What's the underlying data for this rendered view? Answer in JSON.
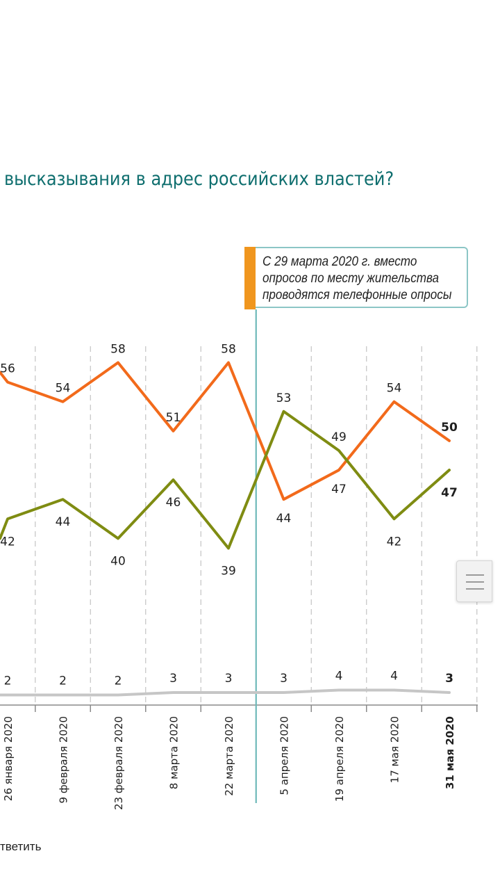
{
  "title": "высказывания в адрес российских властей?",
  "annotation": {
    "lines": [
      "С 29 марта 2020 г. вместо",
      "опросов по месту жительства",
      "проводятся телефонные опросы"
    ],
    "accent_color": "#f0961e",
    "border_color": "#8cc6c6"
  },
  "footnote": "тветить",
  "menu_icon": "hamburger-menu-icon",
  "chart_data": {
    "type": "line",
    "categories": [
      "26 января 2020",
      "9 февраля 2020",
      "23 февраля 2020",
      "8 марта 2020",
      "22 марта 2020",
      "5 апреля 2020",
      "19 апреля 2020",
      "17 мая 2020",
      "31 мая 2020"
    ],
    "highlighted_category": "31 мая 2020",
    "series": [
      {
        "color": "#f26a1b",
        "values": [
          56,
          54,
          58,
          51,
          58,
          44,
          47,
          54,
          50
        ],
        "label_position": "above-before-april, below-after-april"
      },
      {
        "color": "#7f8c12",
        "values": [
          42,
          44,
          40,
          46,
          39,
          53,
          49,
          42,
          47
        ]
      },
      {
        "color": "#c6c6c6",
        "values": [
          2,
          2,
          2,
          3,
          3,
          3,
          4,
          4,
          3
        ]
      }
    ],
    "partial_left_values": {
      "orange": 57,
      "olive": 40,
      "gray": 2
    },
    "method_change_between": [
      "22 марта 2020",
      "5 апреля 2020"
    ],
    "gridlines": "vertical-dashed"
  }
}
